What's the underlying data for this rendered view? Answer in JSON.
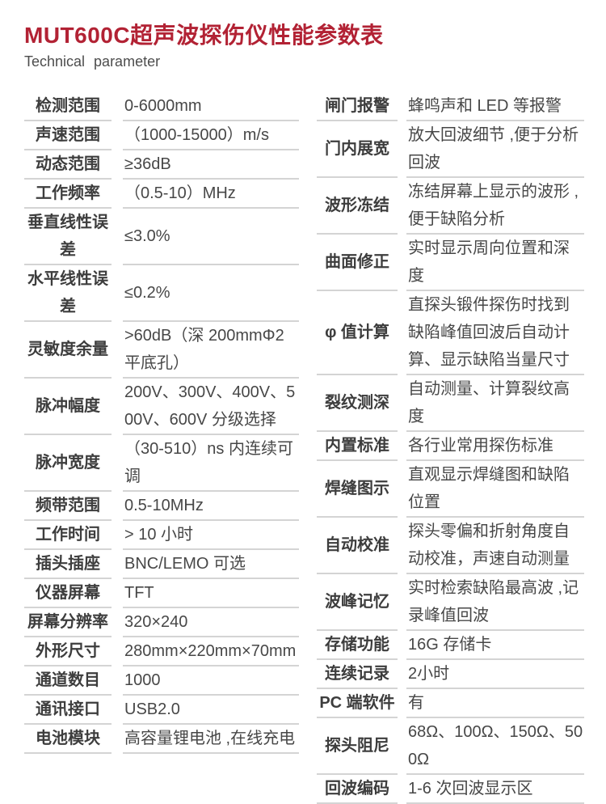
{
  "header": {
    "title": "MUT600C超声波探伤仪性能参数表",
    "subtitle": "Technical parameter"
  },
  "colors": {
    "accent": "#b22234",
    "divider": "#d4d4d4",
    "label_text": "#3d3d3d",
    "value_text": "#474747"
  },
  "left_table": {
    "rows": [
      {
        "label": "检测范围",
        "value": "0-6000mm"
      },
      {
        "label": "声速范围",
        "value": "（1000-15000）m/s"
      },
      {
        "label": "动态范围",
        "value": "≥36dB"
      },
      {
        "label": "工作频率",
        "value": "（0.5-10）MHz"
      },
      {
        "label": "垂直线性误差",
        "value": "≤3.0%"
      },
      {
        "label": "水平线性误差",
        "value": "≤0.2%"
      },
      {
        "label": "灵敏度余量",
        "value": ">60dB（深 200mmΦ2 平底孔）"
      },
      {
        "label": "脉冲幅度",
        "value": "200V、300V、400V、500V、600V 分级选择"
      },
      {
        "label": "脉冲宽度",
        "value": "（30-510）ns 内连续可调"
      },
      {
        "label": "频带范围",
        "value": "0.5-10MHz"
      },
      {
        "label": "工作时间",
        "value": "> 10 小时"
      },
      {
        "label": "插头插座",
        "value": "BNC/LEMO 可选"
      },
      {
        "label": "仪器屏幕",
        "value": "TFT"
      },
      {
        "label": "屏幕分辨率",
        "value": "320×240"
      },
      {
        "label": "外形尺寸",
        "value": "280mm×220mm×70mm"
      },
      {
        "label": "通道数目",
        "value": "1000"
      },
      {
        "label": "通讯接口",
        "value": "USB2.0"
      },
      {
        "label": "电池模块",
        "value": "高容量锂电池 ,在线充电"
      }
    ]
  },
  "right_table": {
    "rows": [
      {
        "label": "闸门报警",
        "value": "蜂鸣声和 LED 等报警"
      },
      {
        "label": "门内展宽",
        "value": "放大回波细节 ,便于分析回波"
      },
      {
        "label": "波形冻结",
        "value": "冻结屏幕上显示的波形 ,便于缺陷分析"
      },
      {
        "label": "曲面修正",
        "value": "实时显示周向位置和深度"
      },
      {
        "label": "φ 值计算",
        "value": "直探头锻件探伤时找到缺陷峰值回波后自动计算、显示缺陷当量尺寸"
      },
      {
        "label": "裂纹测深",
        "value": "自动测量、计算裂纹高度"
      },
      {
        "label": "内置标准",
        "value": "各行业常用探伤标准"
      },
      {
        "label": "焊缝图示",
        "value": "直观显示焊缝图和缺陷位置"
      },
      {
        "label": "自动校准",
        "value": "探头零偏和折射角度自动校准，声速自动测量"
      },
      {
        "label": "波峰记忆",
        "value": "实时检索缺陷最高波 ,记录峰值回波"
      },
      {
        "label": "存储功能",
        "value": "16G 存储卡"
      },
      {
        "label": "连续记录",
        "value": "2小时"
      },
      {
        "label": "PC 端软件",
        "value": "有"
      },
      {
        "label": "探头阻尼",
        "value": "68Ω、100Ω、150Ω、500Ω"
      },
      {
        "label": "回波编码",
        "value": "1-6 次回波显示区"
      }
    ]
  }
}
